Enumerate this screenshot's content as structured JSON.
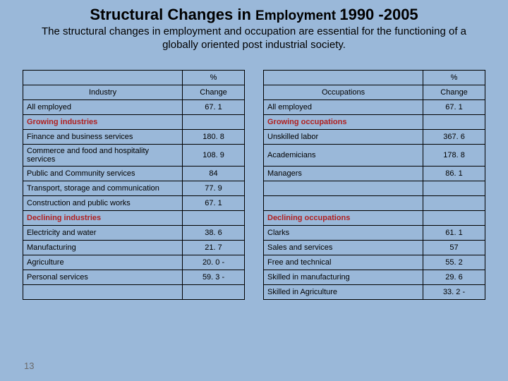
{
  "title": {
    "part1": "Structural Changes in ",
    "part2": "Employment ",
    "part3": "1990 -2005"
  },
  "subtitle": "The structural changes in employment and occupation are essential for the functioning of a globally oriented post industrial society.",
  "left": {
    "pctHeader": "%",
    "labelHeader": "Industry",
    "changeHeader": "Change",
    "allEmployedLabel": "All employed",
    "allEmployedVal": "67. 1",
    "growingHeader": "Growing industries",
    "rowsGrowing": [
      {
        "label": "Finance and business services",
        "val": "180. 8",
        "tall": false
      },
      {
        "label": "Commerce and food and hospitality services",
        "val": "108. 9",
        "tall": true
      },
      {
        "label": "Public and Community services",
        "val": "84",
        "tall": false
      },
      {
        "label": "Transport, storage and communication",
        "val": "77. 9",
        "tall": false
      },
      {
        "label": "Construction and public works",
        "val": "67. 1",
        "tall": false
      }
    ],
    "decliningHeader": "Declining industries",
    "rowsDeclining": [
      {
        "label": "Electricity and water",
        "val": "38. 6"
      },
      {
        "label": "Manufacturing",
        "val": "21. 7"
      },
      {
        "label": "Agriculture",
        "val": "20. 0 -"
      },
      {
        "label": "Personal services",
        "val": "59. 3 -"
      }
    ]
  },
  "right": {
    "pctHeader": "%",
    "labelHeader": "Occupations",
    "changeHeader": "Change",
    "allEmployedLabel": "All employed",
    "allEmployedVal": "67. 1",
    "growingHeader": "Growing occupations",
    "rowsGrowing": [
      {
        "label": "Unskilled labor",
        "val": "367. 6",
        "tall": false
      },
      {
        "label": "Academicians",
        "val": "178. 8",
        "tall": true
      },
      {
        "label": "Managers",
        "val": "86. 1",
        "tall": false
      },
      {
        "label": "",
        "val": "",
        "tall": false
      },
      {
        "label": "",
        "val": "",
        "tall": false
      }
    ],
    "decliningHeader": "Declining occupations",
    "rowsDeclining": [
      {
        "label": "Clarks",
        "val": "61. 1"
      },
      {
        "label": "Sales and services",
        "val": "57"
      },
      {
        "label": "Free and technical",
        "val": "55. 2"
      },
      {
        "label": "Skilled in manufacturing",
        "val": "29. 6"
      }
    ],
    "extraRow": {
      "label": "Skilled in Agriculture",
      "val": "33. 2 -"
    }
  },
  "pageNumber": "13",
  "colors": {
    "background": "#9ab8d9",
    "sectionText": "#b02020",
    "border": "#000000",
    "pageNum": "#6a6a6a"
  }
}
